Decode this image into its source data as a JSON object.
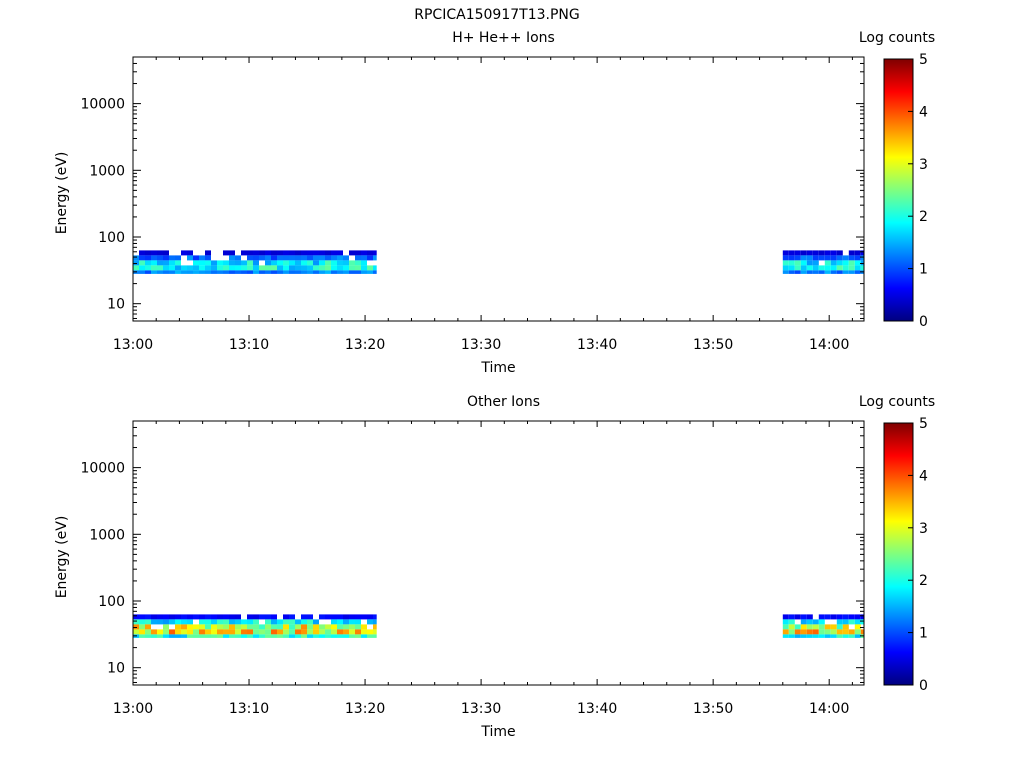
{
  "figure": {
    "title": "RPCICA150917T13.PNG"
  },
  "colormap": [
    "#00007f",
    "#0000ff",
    "#007fff",
    "#00ffff",
    "#7fff7f",
    "#ffff00",
    "#ff7f00",
    "#ff0000",
    "#7f0000"
  ],
  "chart_data": [
    {
      "type": "heatmap",
      "title": "H+ He++ Ions",
      "xlabel": "Time",
      "ylabel": "Energy (eV)",
      "xlim": [
        "13:00",
        "14:03"
      ],
      "x_ticks": [
        "13:00",
        "13:10",
        "13:20",
        "13:30",
        "13:40",
        "13:50",
        "14:00"
      ],
      "ylim": [
        5.5,
        50000
      ],
      "y_scale": "log",
      "y_ticks": [
        "10",
        "100",
        "1000",
        "10000"
      ],
      "colorbar": {
        "label": "Log counts",
        "range": [
          0,
          5
        ],
        "ticks": [
          "0",
          "1",
          "2",
          "3",
          "4",
          "5"
        ]
      },
      "data_blocks": [
        {
          "time_start": "13:00",
          "time_end": "13:21",
          "energy_range_eV": [
            28,
            63
          ],
          "log_counts_range": [
            0.2,
            2.8
          ]
        },
        {
          "time_start": "13:56",
          "time_end": "14:03",
          "energy_range_eV": [
            28,
            63
          ],
          "log_counts_range": [
            0.2,
            2.8
          ]
        }
      ]
    },
    {
      "type": "heatmap",
      "title": "Other Ions",
      "xlabel": "Time",
      "ylabel": "Energy (eV)",
      "xlim": [
        "13:00",
        "14:03"
      ],
      "x_ticks": [
        "13:00",
        "13:10",
        "13:20",
        "13:30",
        "13:40",
        "13:50",
        "14:00"
      ],
      "ylim": [
        5.5,
        50000
      ],
      "y_scale": "log",
      "y_ticks": [
        "10",
        "100",
        "1000",
        "10000"
      ],
      "colorbar": {
        "label": "Log counts",
        "range": [
          0,
          5
        ],
        "ticks": [
          "0",
          "1",
          "2",
          "3",
          "4",
          "5"
        ]
      },
      "data_blocks": [
        {
          "time_start": "13:00",
          "time_end": "13:21",
          "energy_range_eV": [
            28,
            63
          ],
          "log_counts_range": [
            0.2,
            4.6
          ]
        },
        {
          "time_start": "13:56",
          "time_end": "14:03",
          "energy_range_eV": [
            28,
            63
          ],
          "log_counts_range": [
            0.2,
            4.6
          ]
        }
      ]
    }
  ]
}
